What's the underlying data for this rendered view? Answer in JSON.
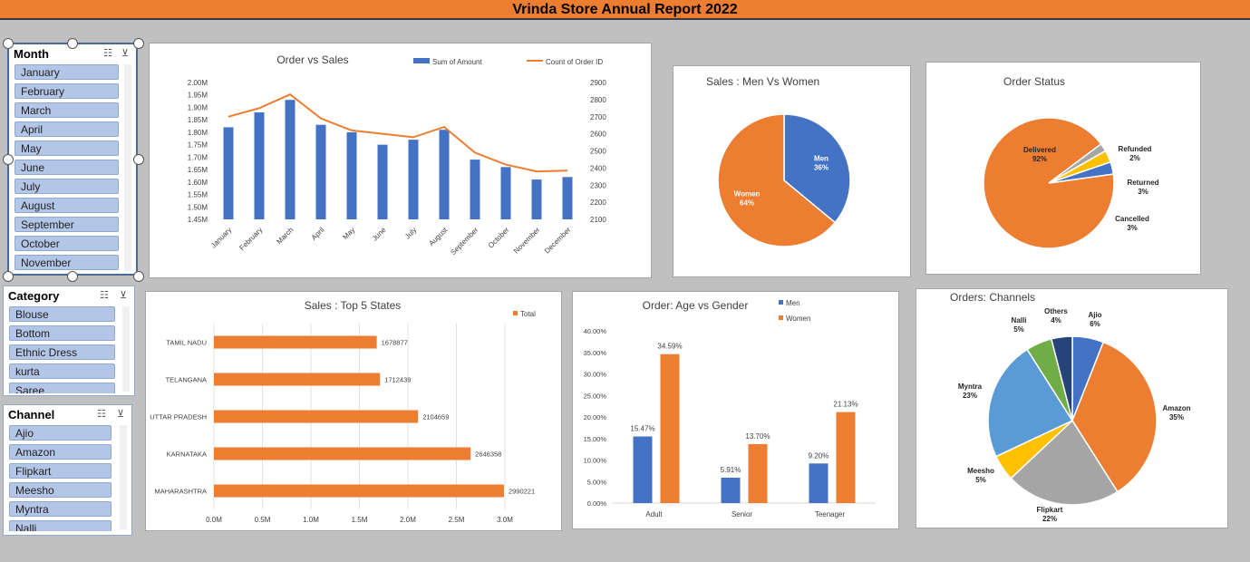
{
  "report": {
    "title": "Vrinda Store Annual Report 2022"
  },
  "slicers": {
    "month": {
      "title": "Month",
      "items": [
        "January",
        "February",
        "March",
        "April",
        "May",
        "June",
        "July",
        "August",
        "September",
        "October",
        "November"
      ]
    },
    "category": {
      "title": "Category",
      "items": [
        "Blouse",
        "Bottom",
        "Ethnic Dress",
        "kurta",
        "Saree"
      ]
    },
    "channel": {
      "title": "Channel",
      "items": [
        "Ajio",
        "Amazon",
        "Flipkart",
        "Meesho",
        "Myntra",
        "Nalli"
      ]
    }
  },
  "colors": {
    "blue": "#4472c4",
    "orange": "#ed7d31",
    "gray": "#a5a5a5",
    "yellow": "#ffc000",
    "lightblue": "#5b9bd5",
    "green": "#70ad47",
    "navy": "#264478"
  },
  "chart_data": [
    {
      "id": "order-vs-sales",
      "type": "bar",
      "title": "Order vs Sales",
      "categories": [
        "January",
        "February",
        "March",
        "April",
        "May",
        "June",
        "July",
        "August",
        "September",
        "October",
        "November",
        "December"
      ],
      "series": [
        {
          "name": "Sum of Amount",
          "type": "bar",
          "axis": "left",
          "values": [
            1.82,
            1.88,
            1.93,
            1.83,
            1.8,
            1.75,
            1.77,
            1.81,
            1.69,
            1.66,
            1.61,
            1.62
          ]
        },
        {
          "name": "Count of Order ID",
          "type": "line",
          "axis": "right",
          "values": [
            2700,
            2750,
            2830,
            2690,
            2620,
            2600,
            2580,
            2640,
            2490,
            2420,
            2380,
            2385
          ]
        }
      ],
      "ylim": [
        1.45,
        2.0
      ],
      "yticks": [
        "2.00M",
        "1.95M",
        "1.90M",
        "1.85M",
        "1.80M",
        "1.75M",
        "1.70M",
        "1.65M",
        "1.60M",
        "1.55M",
        "1.50M",
        "1.45M"
      ],
      "y2lim": [
        2100,
        2900
      ],
      "y2ticks": [
        "2900",
        "2800",
        "2700",
        "2600",
        "2500",
        "2400",
        "2300",
        "2200",
        "2100"
      ]
    },
    {
      "id": "men-vs-women",
      "type": "pie",
      "title": "Sales : Men Vs Women",
      "slices": [
        {
          "label": "Men",
          "value": 36,
          "text": "36%"
        },
        {
          "label": "Women",
          "value": 64,
          "text": "64%"
        }
      ]
    },
    {
      "id": "order-status",
      "type": "pie",
      "title": "Order Status",
      "slices": [
        {
          "label": "Delivered",
          "value": 92,
          "text": "92%"
        },
        {
          "label": "Refunded",
          "value": 2,
          "text": "2%"
        },
        {
          "label": "Returned",
          "value": 3,
          "text": "3%"
        },
        {
          "label": "Cancelled",
          "value": 3,
          "text": "3%"
        }
      ]
    },
    {
      "id": "top-states",
      "type": "bar",
      "orientation": "horizontal",
      "title": "Sales : Top  5 States",
      "legend": "Total",
      "categories": [
        "TAMIL NADU",
        "TELANGANA",
        "UTTAR PRADESH",
        "KARNATAKA",
        "MAHARASHTRA"
      ],
      "values": [
        1678877,
        1712439,
        2104659,
        2646358,
        2990221
      ],
      "xlim": [
        0,
        3000000
      ],
      "xticks": [
        "0.0M",
        "0.5M",
        "1.0M",
        "1.5M",
        "2.0M",
        "2.5M",
        "3.0M"
      ]
    },
    {
      "id": "age-vs-gender",
      "type": "bar",
      "title": "Order: Age vs Gender",
      "categories": [
        "Adult",
        "Senior",
        "Teenager"
      ],
      "series": [
        {
          "name": "Men",
          "values": [
            15.47,
            5.91,
            9.2
          ],
          "labels": [
            "15.47%",
            "5.91%",
            "9.20%"
          ]
        },
        {
          "name": "Women",
          "values": [
            34.59,
            13.7,
            21.13
          ],
          "labels": [
            "34.59%",
            "13.70%",
            "21.13%"
          ]
        }
      ],
      "ylim": [
        0,
        40
      ],
      "yticks": [
        "40.00%",
        "35.00%",
        "30.00%",
        "25.00%",
        "20.00%",
        "15.00%",
        "10.00%",
        "5.00%",
        "0.00%"
      ]
    },
    {
      "id": "channels",
      "type": "pie",
      "title": "Orders: Channels",
      "slices": [
        {
          "label": "Ajio",
          "value": 6,
          "text": "6%"
        },
        {
          "label": "Amazon",
          "value": 35,
          "text": "35%"
        },
        {
          "label": "Flipkart",
          "value": 22,
          "text": "22%"
        },
        {
          "label": "Meesho",
          "value": 5,
          "text": "5%"
        },
        {
          "label": "Myntra",
          "value": 23,
          "text": "23%"
        },
        {
          "label": "Nalli",
          "value": 5,
          "text": "5%"
        },
        {
          "label": "Others",
          "value": 4,
          "text": "4%"
        }
      ]
    }
  ]
}
